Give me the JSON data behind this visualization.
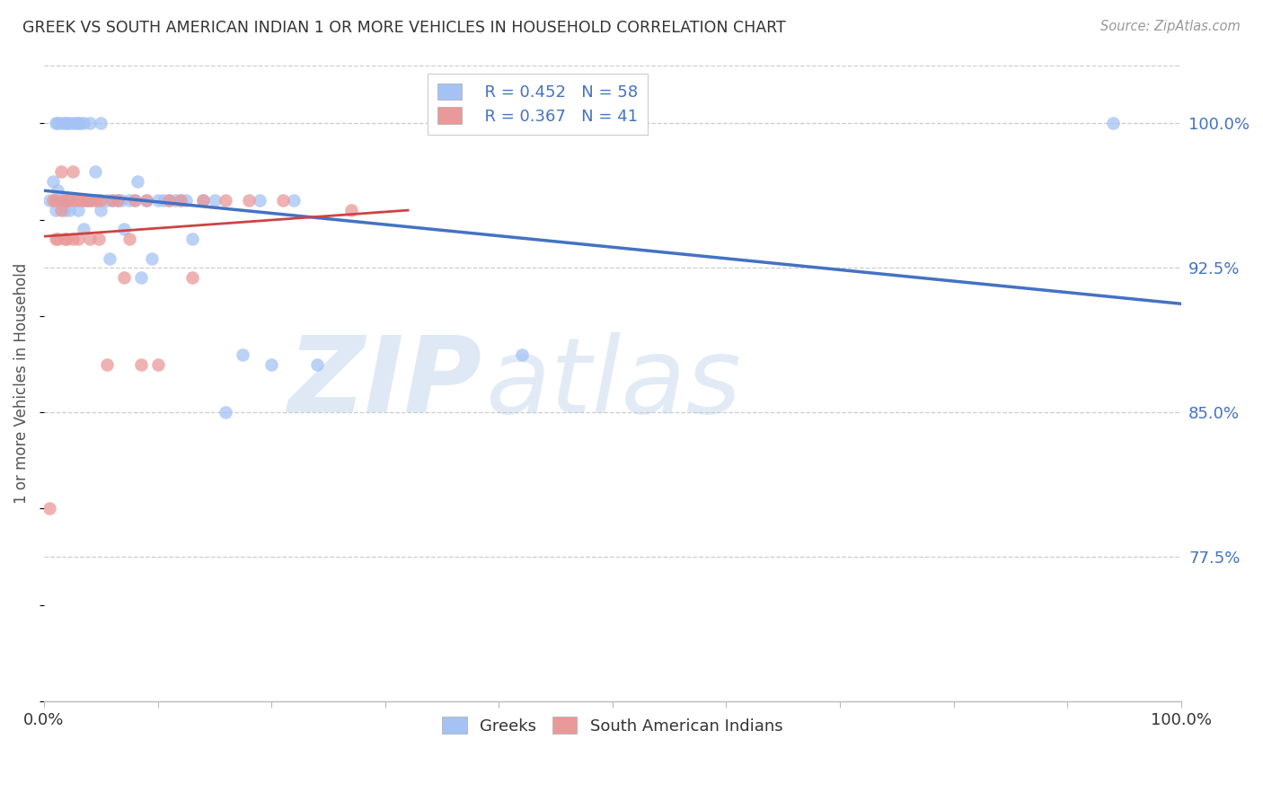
{
  "title": "GREEK VS SOUTH AMERICAN INDIAN 1 OR MORE VEHICLES IN HOUSEHOLD CORRELATION CHART",
  "source": "Source: ZipAtlas.com",
  "ylabel": "1 or more Vehicles in Household",
  "xlim": [
    0.0,
    1.0
  ],
  "ylim": [
    0.7,
    1.03
  ],
  "yticks": [
    0.775,
    0.85,
    0.925,
    1.0
  ],
  "ytick_labels": [
    "77.5%",
    "85.0%",
    "92.5%",
    "100.0%"
  ],
  "xticks": [
    0.0,
    0.1,
    0.2,
    0.3,
    0.4,
    0.5,
    0.6,
    0.7,
    0.8,
    0.9,
    1.0
  ],
  "xtick_labels": [
    "0.0%",
    "",
    "",
    "",
    "",
    "",
    "",
    "",
    "",
    "",
    "100.0%"
  ],
  "greek_color": "#a4c2f4",
  "sai_color": "#ea9999",
  "greek_R": 0.452,
  "greek_N": 58,
  "sai_R": 0.367,
  "sai_N": 41,
  "watermark_zip": "ZIP",
  "watermark_atlas": "atlas",
  "background_color": "#ffffff",
  "greek_line_color": "#4472c4",
  "sai_line_color": "#cc4444",
  "greek_points_x": [
    0.005,
    0.008,
    0.01,
    0.01,
    0.012,
    0.012,
    0.015,
    0.015,
    0.018,
    0.018,
    0.02,
    0.02,
    0.022,
    0.022,
    0.025,
    0.025,
    0.028,
    0.03,
    0.03,
    0.032,
    0.035,
    0.035,
    0.038,
    0.04,
    0.04,
    0.045,
    0.048,
    0.05,
    0.05,
    0.055,
    0.058,
    0.06,
    0.065,
    0.068,
    0.07,
    0.075,
    0.08,
    0.082,
    0.085,
    0.09,
    0.095,
    0.1,
    0.105,
    0.11,
    0.115,
    0.12,
    0.125,
    0.13,
    0.14,
    0.15,
    0.16,
    0.175,
    0.19,
    0.2,
    0.22,
    0.24,
    0.42,
    0.94
  ],
  "greek_points_y": [
    0.96,
    0.97,
    0.955,
    1.0,
    0.965,
    1.0,
    0.96,
    1.0,
    0.955,
    1.0,
    0.96,
    1.0,
    0.955,
    1.0,
    0.96,
    1.0,
    1.0,
    0.955,
    1.0,
    1.0,
    0.945,
    1.0,
    0.96,
    0.96,
    1.0,
    0.975,
    0.96,
    0.955,
    1.0,
    0.96,
    0.93,
    0.96,
    0.96,
    0.96,
    0.945,
    0.96,
    0.96,
    0.97,
    0.92,
    0.96,
    0.93,
    0.96,
    0.96,
    0.96,
    0.96,
    0.96,
    0.96,
    0.94,
    0.96,
    0.96,
    0.85,
    0.88,
    0.96,
    0.875,
    0.96,
    0.875,
    0.88,
    1.0
  ],
  "sai_points_x": [
    0.005,
    0.008,
    0.01,
    0.01,
    0.012,
    0.015,
    0.015,
    0.018,
    0.018,
    0.02,
    0.02,
    0.022,
    0.025,
    0.025,
    0.028,
    0.03,
    0.032,
    0.035,
    0.038,
    0.04,
    0.042,
    0.045,
    0.048,
    0.05,
    0.055,
    0.06,
    0.065,
    0.07,
    0.075,
    0.08,
    0.085,
    0.09,
    0.1,
    0.11,
    0.12,
    0.13,
    0.14,
    0.16,
    0.18,
    0.21,
    0.27
  ],
  "sai_points_y": [
    0.8,
    0.96,
    0.94,
    0.96,
    0.94,
    0.955,
    0.975,
    0.94,
    0.96,
    0.94,
    0.96,
    0.96,
    0.94,
    0.975,
    0.96,
    0.94,
    0.96,
    0.96,
    0.96,
    0.94,
    0.96,
    0.96,
    0.94,
    0.96,
    0.875,
    0.96,
    0.96,
    0.92,
    0.94,
    0.96,
    0.875,
    0.96,
    0.875,
    0.96,
    0.96,
    0.92,
    0.96,
    0.96,
    0.96,
    0.96,
    0.955
  ]
}
